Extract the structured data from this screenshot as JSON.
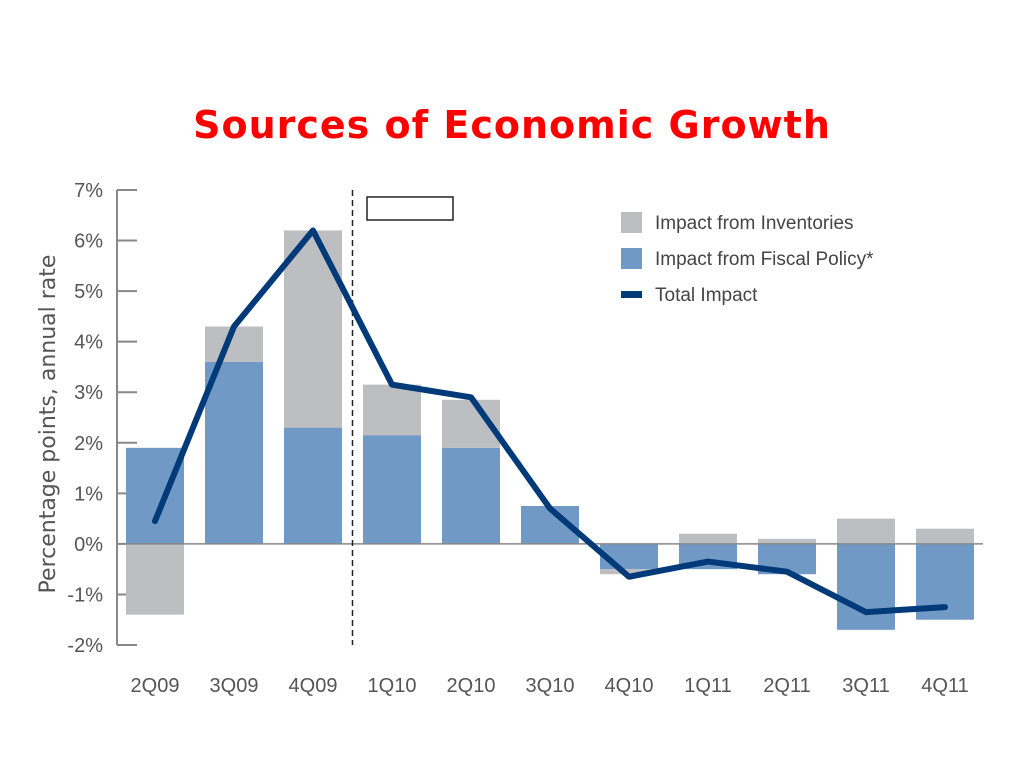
{
  "slide": {
    "title": "Sources of Economic Growth"
  },
  "colors": {
    "title": "#ff0000",
    "inventories": "#bcbec2",
    "fiscal_policy": "#7199c6",
    "total": "#003a78",
    "axis": "#888888"
  },
  "chart_data": {
    "type": "bar",
    "title": "",
    "xlabel": "",
    "ylabel": "Percentage points, annual rate",
    "ylim": [
      -2,
      7
    ],
    "yticks": [
      "-2%",
      "-1%",
      "0%",
      "1%",
      "2%",
      "3%",
      "4%",
      "5%",
      "6%",
      "7%"
    ],
    "categories": [
      "2Q09",
      "3Q09",
      "4Q09",
      "1Q10",
      "2Q10",
      "3Q10",
      "4Q10",
      "1Q11",
      "2Q11",
      "3Q11",
      "4Q11"
    ],
    "series": [
      {
        "name": "Impact from Inventories",
        "kind": "bar",
        "values": [
          -1.4,
          0.7,
          3.9,
          1.0,
          0.95,
          0.0,
          -0.1,
          0.2,
          0.1,
          0.5,
          0.3
        ]
      },
      {
        "name": "Impact from Fiscal Policy*",
        "kind": "bar",
        "values": [
          1.9,
          3.6,
          2.3,
          2.15,
          1.9,
          0.75,
          -0.5,
          -0.5,
          -0.6,
          -1.7,
          -1.5
        ]
      },
      {
        "name": "Total Impact",
        "kind": "line",
        "values": [
          0.45,
          4.3,
          6.2,
          3.15,
          2.9,
          0.7,
          -0.65,
          -0.35,
          -0.55,
          -1.35,
          -1.25
        ]
      }
    ],
    "grid": false,
    "legend_position": "top-right",
    "forecast_divider_after": "4Q09"
  }
}
